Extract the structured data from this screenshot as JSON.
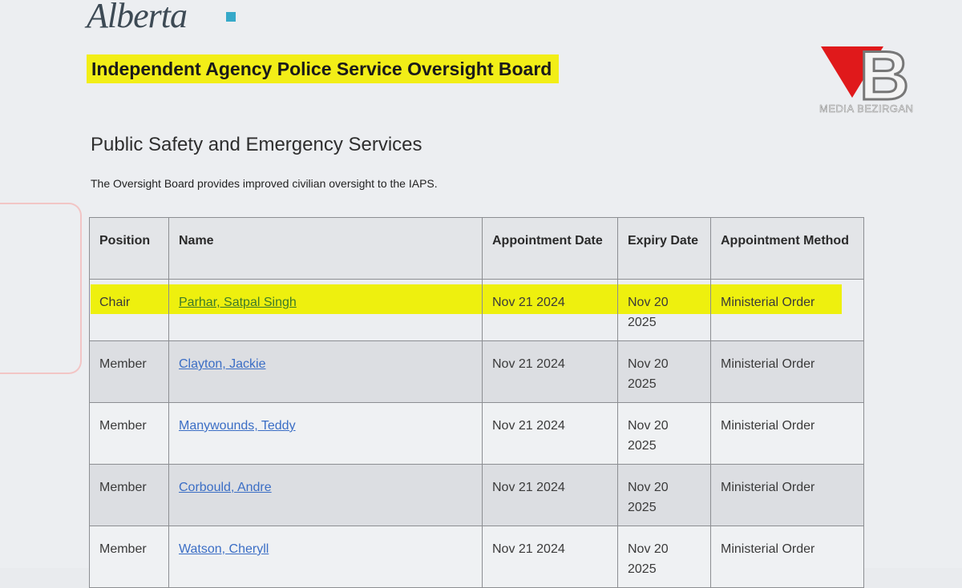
{
  "logo": "Alberta",
  "watermark": {
    "letter": "B",
    "text": "MEDIA BEZIRGAN"
  },
  "header": {
    "title": "Independent Agency Police Service Oversight Board"
  },
  "section": {
    "heading": "Public Safety and Emergency Services",
    "description": "The Oversight Board provides improved civilian oversight to the IAPS."
  },
  "table": {
    "columns": [
      "Position",
      "Name",
      "Appointment Date",
      "Expiry Date",
      "Appointment Method"
    ],
    "rows": [
      [
        "Chair",
        "Parhar, Satpal Singh",
        "Nov 21 2024",
        "Nov 20 2025",
        "Ministerial Order"
      ],
      [
        "Member",
        "Clayton, Jackie",
        "Nov 21 2024",
        "Nov 20 2025",
        "Ministerial Order"
      ],
      [
        "Member",
        "Manywounds, Teddy",
        "Nov 21 2024",
        "Nov 20 2025",
        "Ministerial Order"
      ],
      [
        "Member",
        "Corbould, Andre",
        "Nov 21 2024",
        "Nov 20 2025",
        "Ministerial Order"
      ],
      [
        "Member",
        "Watson, Cheryll",
        "Nov 21 2024",
        "Nov 20 2025",
        "Ministerial Order"
      ]
    ]
  }
}
